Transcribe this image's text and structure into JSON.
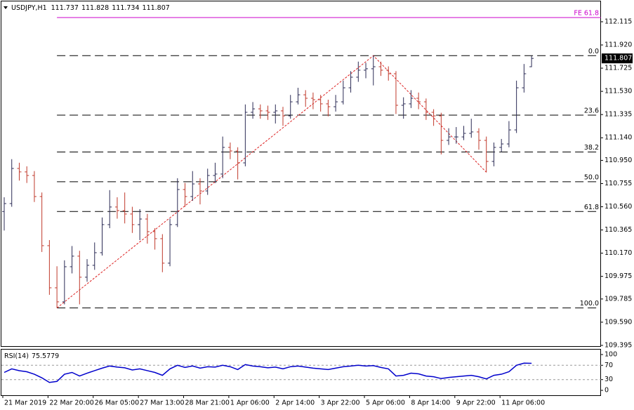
{
  "chart_data": {
    "type": "ohlc",
    "symbol": "USDJPY,H1",
    "categories": [
      "21 Mar 2019",
      null,
      null,
      null,
      null,
      null,
      "22 Mar 20:00",
      null,
      null,
      null,
      null,
      null,
      "26 Mar 05:00",
      null,
      null,
      null,
      null,
      null,
      "27 Mar 13:00",
      null,
      null,
      null,
      null,
      null,
      "28 Mar 21:00",
      null,
      null,
      null,
      null,
      null,
      "1 Apr 06:00",
      null,
      null,
      null,
      null,
      null,
      "2 Apr 14:00",
      null,
      null,
      null,
      null,
      null,
      "3 Apr 22:00",
      null,
      null,
      null,
      null,
      null,
      "5 Apr 06:00",
      null,
      null,
      null,
      null,
      null,
      "8 Apr 14:00",
      null,
      null,
      null,
      null,
      null,
      "9 Apr 22:00",
      null,
      null,
      null,
      null,
      null,
      "11 Apr 06:00",
      null,
      null,
      null,
      null
    ],
    "open": [
      110.52,
      110.587,
      110.882,
      110.853,
      110.823,
      110.646,
      110.233,
      109.879,
      109.761,
      110.056,
      110.145,
      109.968,
      110.068,
      110.174,
      110.41,
      110.558,
      110.528,
      110.499,
      110.41,
      110.457,
      110.351,
      110.292,
      110.086,
      110.41,
      110.705,
      110.646,
      110.752,
      110.693,
      110.823,
      110.835,
      111.059,
      111.029,
      110.929,
      111.354,
      111.383,
      111.366,
      111.354,
      111.366,
      111.324,
      111.442,
      111.501,
      111.472,
      111.46,
      111.425,
      111.401,
      111.442,
      111.56,
      111.649,
      111.708,
      111.72,
      111.737,
      111.708,
      111.678,
      111.413,
      111.425,
      111.472,
      111.442,
      111.354,
      111.324,
      111.118,
      111.147,
      111.147,
      111.177,
      111.189,
      111.118,
      110.941,
      111.059,
      111.088,
      111.206,
      111.56,
      111.737
    ],
    "high": [
      110.64,
      110.96,
      110.93,
      110.9,
      110.86,
      110.68,
      110.28,
      110.06,
      110.11,
      110.23,
      110.19,
      110.12,
      110.26,
      110.47,
      110.7,
      110.64,
      110.68,
      110.56,
      110.54,
      110.5,
      110.38,
      110.33,
      110.46,
      110.8,
      110.76,
      110.86,
      110.8,
      110.88,
      110.93,
      111.15,
      111.1,
      111.06,
      111.42,
      111.44,
      111.42,
      111.41,
      111.42,
      111.4,
      111.5,
      111.56,
      111.54,
      111.52,
      111.5,
      111.46,
      111.5,
      111.62,
      111.7,
      111.78,
      111.77,
      111.83,
      111.78,
      111.74,
      111.7,
      111.48,
      111.54,
      111.52,
      111.47,
      111.38,
      111.35,
      111.22,
      111.23,
      111.24,
      111.3,
      111.22,
      111.15,
      111.1,
      111.13,
      111.28,
      111.62,
      111.76,
      111.828
    ],
    "low": [
      110.36,
      110.56,
      110.78,
      110.76,
      110.6,
      110.18,
      109.82,
      109.71,
      109.74,
      110.0,
      109.74,
      109.93,
      110.03,
      110.15,
      110.38,
      110.46,
      110.42,
      110.34,
      110.28,
      110.25,
      110.2,
      110.01,
      110.06,
      110.39,
      110.56,
      110.61,
      110.58,
      110.66,
      110.76,
      110.8,
      110.96,
      110.79,
      110.9,
      111.3,
      111.3,
      111.29,
      111.26,
      111.24,
      111.3,
      111.42,
      111.4,
      111.38,
      111.36,
      111.32,
      111.36,
      111.42,
      111.52,
      111.61,
      111.64,
      111.58,
      111.66,
      111.62,
      111.34,
      111.3,
      111.39,
      111.38,
      111.29,
      111.24,
      111.0,
      111.08,
      111.09,
      111.12,
      111.14,
      111.04,
      110.85,
      110.9,
      111.02,
      111.06,
      111.18,
      111.52,
      111.734
    ],
    "close": [
      110.587,
      110.882,
      110.853,
      110.823,
      110.646,
      110.233,
      109.879,
      109.761,
      110.056,
      110.145,
      109.968,
      110.068,
      110.174,
      110.41,
      110.558,
      110.528,
      110.499,
      110.41,
      110.457,
      110.351,
      110.292,
      110.086,
      110.41,
      110.705,
      110.646,
      110.752,
      110.693,
      110.823,
      110.835,
      111.059,
      111.029,
      110.929,
      111.354,
      111.383,
      111.366,
      111.354,
      111.366,
      111.324,
      111.442,
      111.501,
      111.472,
      111.46,
      111.425,
      111.401,
      111.442,
      111.56,
      111.649,
      111.708,
      111.72,
      111.737,
      111.708,
      111.678,
      111.413,
      111.425,
      111.472,
      111.442,
      111.354,
      111.324,
      111.118,
      111.147,
      111.147,
      111.177,
      111.189,
      111.118,
      110.941,
      111.059,
      111.088,
      111.206,
      111.56,
      111.678,
      111.807
    ],
    "up_color": "#2b2b55",
    "down_color": "#c0392b",
    "ylim": [
      109.383,
      112.286
    ],
    "yticks": [
      112.115,
      {
        "value": 111.92,
        "label": "111.920"
      },
      111.725,
      {
        "value": 111.53,
        "label": "111.530"
      },
      111.335,
      {
        "value": 111.14,
        "label": "111.140"
      },
      {
        "value": 110.95,
        "label": "110.950"
      },
      110.755,
      {
        "value": 110.56,
        "label": "110.560"
      },
      110.365,
      {
        "value": 110.17,
        "label": "110.170"
      },
      109.975,
      109.785,
      {
        "value": 109.59,
        "label": "109.590"
      },
      109.395
    ],
    "fib": {
      "color": "#000000",
      "levels": [
        {
          "label": "0.0",
          "value": 111.83
        },
        {
          "label": "23.6",
          "value": 111.33
        },
        {
          "label": "38.2",
          "value": 111.02
        },
        {
          "label": "50.0",
          "value": 110.77
        },
        {
          "label": "61.8",
          "value": 110.52
        },
        {
          "label": "100.0",
          "value": 109.71
        }
      ]
    },
    "fe": {
      "label": "FE 61.8",
      "value": 112.15,
      "color": "#cc00cc"
    },
    "trend_color": "#dd2222",
    "indicator": {
      "type": "line",
      "name": "RSI(14)",
      "color": "#0000cc",
      "values": [
        50,
        60,
        55,
        52,
        45,
        35,
        22,
        25,
        45,
        50,
        40,
        48,
        55,
        62,
        68,
        65,
        63,
        57,
        60,
        55,
        50,
        42,
        60,
        70,
        64,
        68,
        62,
        66,
        65,
        70,
        66,
        58,
        72,
        68,
        66,
        63,
        65,
        60,
        66,
        68,
        65,
        62,
        60,
        58,
        62,
        66,
        68,
        70,
        68,
        69,
        64,
        60,
        40,
        42,
        48,
        46,
        40,
        38,
        33,
        36,
        38,
        40,
        42,
        38,
        32,
        42,
        45,
        52,
        70,
        76,
        75.5779
      ],
      "ylim": [
        0,
        100
      ],
      "yticks": [
        0,
        30,
        70,
        100
      ]
    }
  }
}
